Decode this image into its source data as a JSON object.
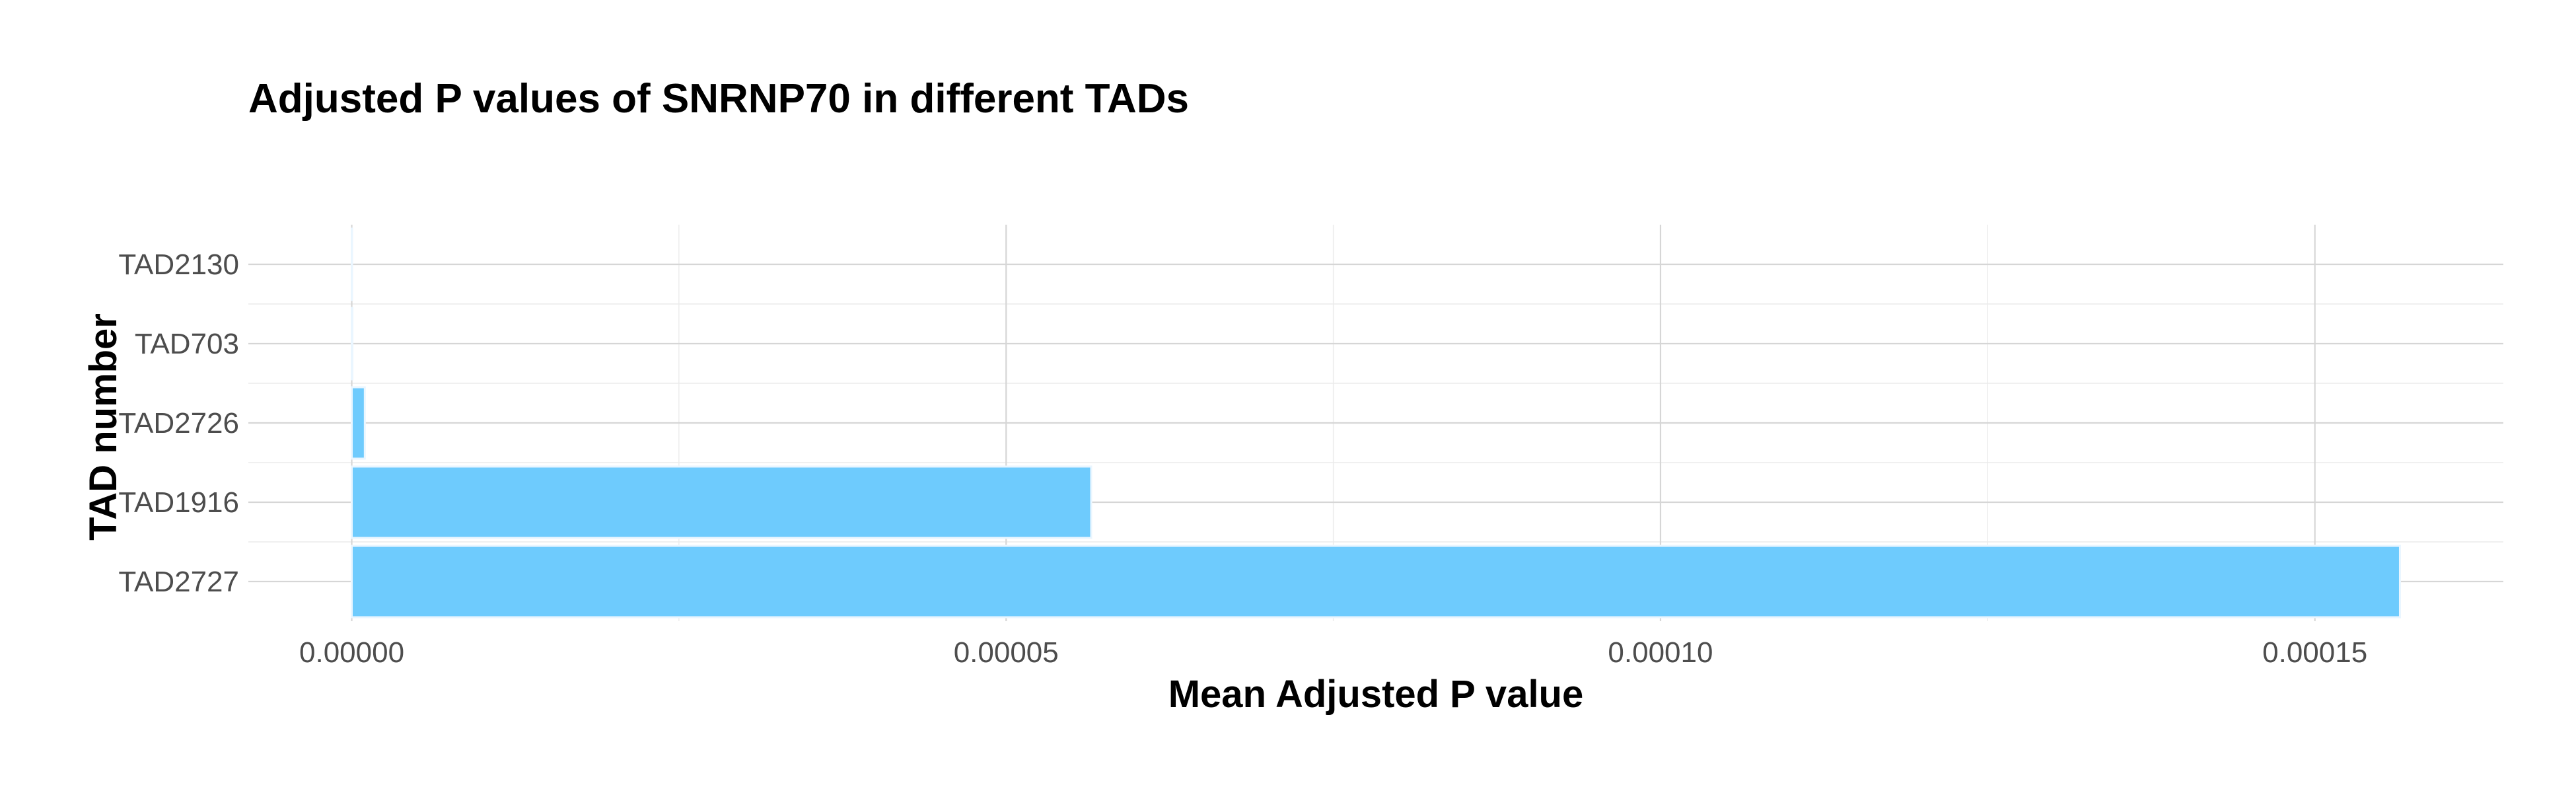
{
  "chart_data": {
    "type": "bar",
    "orientation": "horizontal",
    "title": "Adjusted P values of SNRNP70 in different TADs",
    "xlabel": "Mean Adjusted P value",
    "ylabel": "TAD number",
    "categories": [
      "TAD2727",
      "TAD1916",
      "TAD2726",
      "TAD703",
      "TAD2130"
    ],
    "values": [
      0.0001565,
      5.65e-05,
      1e-06,
      5e-08,
      2e-08
    ],
    "xlim": [
      -7.9e-06,
      0.0001644
    ],
    "xticks": [
      0,
      5e-05,
      0.0001,
      0.00015
    ],
    "xtick_labels": [
      "0.00000",
      "0.00005",
      "0.00010",
      "0.00015"
    ],
    "grid": true,
    "legend": "none",
    "bar_color": "#6ecbfd"
  }
}
